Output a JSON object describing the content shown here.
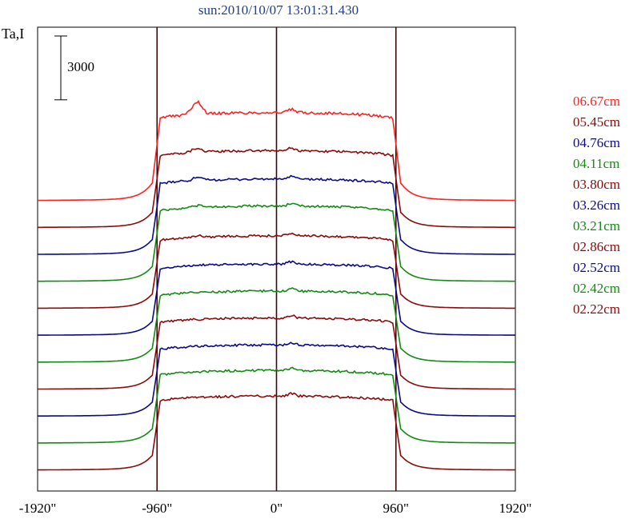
{
  "header": {
    "title": "sun:2010/10/07 13:01:31.430"
  },
  "chart_data": {
    "type": "line",
    "title": "sun:2010/10/07 13:01:31.430",
    "ylabel": "Ta,I",
    "xlabel": "",
    "x_ticks": [
      {
        "value": -1920,
        "label": "-1920\""
      },
      {
        "value": -960,
        "label": "-960\""
      },
      {
        "value": 0,
        "label": "0\""
      },
      {
        "value": 960,
        "label": "960\""
      },
      {
        "value": 1920,
        "label": "1920\""
      }
    ],
    "xlim": [
      -1920,
      1920
    ],
    "vertical_markers": [
      -960,
      0,
      960
    ],
    "scale_bar": {
      "label": "3000",
      "value": 3000
    },
    "series": [
      {
        "name": "06.67cm",
        "color": "#ff2020",
        "baseline": 1,
        "peak": 6300,
        "limb_bump": 900
      },
      {
        "name": "05.45cm",
        "color": "#8b0a0a",
        "baseline": 2,
        "peak": 5500,
        "limb_bump": 300
      },
      {
        "name": "04.76cm",
        "color": "#0a0a8b",
        "baseline": 3,
        "peak": 5400,
        "limb_bump": 200
      },
      {
        "name": "04.11cm",
        "color": "#128b12",
        "baseline": 4,
        "peak": 5400,
        "limb_bump": 150
      },
      {
        "name": "03.80cm",
        "color": "#8b0a0a",
        "baseline": 5,
        "peak": 5200,
        "limb_bump": 100
      },
      {
        "name": "03.26cm",
        "color": "#0a0a8b",
        "baseline": 6,
        "peak": 5100,
        "limb_bump": 50
      },
      {
        "name": "03.21cm",
        "color": "#128b12",
        "baseline": 7,
        "peak": 5100,
        "limb_bump": 0
      },
      {
        "name": "02.86cm",
        "color": "#8b0a0a",
        "baseline": 8,
        "peak": 5100,
        "limb_bump": 0
      },
      {
        "name": "02.52cm",
        "color": "#0a0a8b",
        "baseline": 9,
        "peak": 5100,
        "limb_bump": 0
      },
      {
        "name": "02.42cm",
        "color": "#128b12",
        "baseline": 10,
        "peak": 5200,
        "limb_bump": 0
      },
      {
        "name": "02.22cm",
        "color": "#8b0a0a",
        "baseline": 11,
        "peak": 5300,
        "limb_bump": 0
      }
    ]
  },
  "colors": {
    "title": "#1f3f8f",
    "axis": "#000000",
    "marker": "#3a0a0a"
  }
}
